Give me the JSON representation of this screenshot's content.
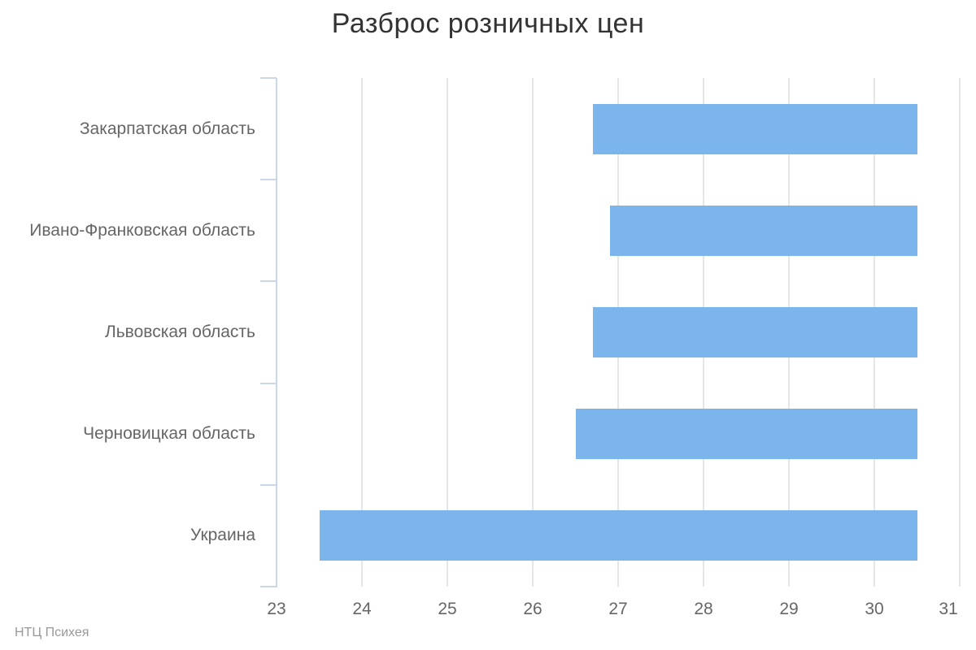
{
  "chart_data": {
    "type": "bar",
    "variant": "columnrange-horizontal",
    "title": "Разброс розничных цен",
    "categories": [
      "Закарпатская область",
      "Ивано-Франковская область",
      "Львовская область",
      "Черновицкая область",
      "Украина"
    ],
    "series": [
      {
        "ranges": [
          [
            26.7,
            30.5
          ],
          [
            26.9,
            30.5
          ],
          [
            26.7,
            30.5
          ],
          [
            26.5,
            30.5
          ],
          [
            23.5,
            30.5
          ]
        ]
      }
    ],
    "value_axis": {
      "min": 23,
      "max": 31,
      "tick_interval": 1,
      "ticks": [
        23,
        24,
        25,
        26,
        27,
        28,
        29,
        30,
        31
      ]
    },
    "grid": true,
    "legend": false,
    "credits": "НТЦ Психея",
    "colors": {
      "bar": "#7cb5ec",
      "grid": "#e6e6e6",
      "axis_line": "#ccd6eb",
      "title_text": "#333333",
      "label_text": "#666666",
      "credits_text": "#999999",
      "background": "#ffffff"
    }
  }
}
